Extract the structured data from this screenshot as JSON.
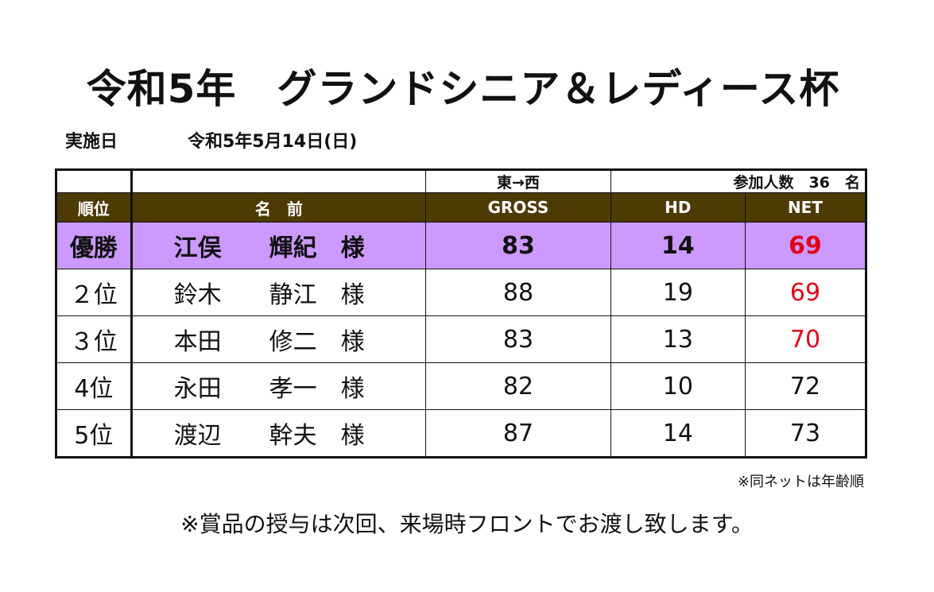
{
  "title": "令和5年　グランドシニア＆レディース杯",
  "event_date": {
    "label": "実施日",
    "value": "令和5年5月14日(日)"
  },
  "table": {
    "info_row": {
      "course": "東→西",
      "participants": "参加人数　36　名"
    },
    "headers": {
      "rank": "順位",
      "name": "名　前",
      "gross": "GROSS",
      "hd": "HD",
      "net": "NET"
    },
    "rows": [
      {
        "rank": "優勝",
        "name": "江俣　　輝紀　様",
        "gross": "83",
        "hd": "14",
        "net": "69",
        "highlight": true,
        "net_red": true
      },
      {
        "rank": "２位",
        "name": "鈴木　　静江　様",
        "gross": "88",
        "hd": "19",
        "net": "69",
        "highlight": false,
        "net_red": true
      },
      {
        "rank": "３位",
        "name": "本田　　修二　様",
        "gross": "83",
        "hd": "13",
        "net": "70",
        "highlight": false,
        "net_red": true
      },
      {
        "rank": "4位",
        "name": "永田　　孝一　様",
        "gross": "82",
        "hd": "10",
        "net": "72",
        "highlight": false,
        "net_red": false
      },
      {
        "rank": "5位",
        "name": "渡辺　　幹夫　様",
        "gross": "87",
        "hd": "14",
        "net": "73",
        "highlight": false,
        "net_red": false
      }
    ]
  },
  "notes": {
    "tie_rule": "※同ネットは年齢順",
    "prize": "※賞品の授与は次回、来場時フロントでお渡し致します。"
  },
  "colors": {
    "header_bg": "#4d3a05",
    "winner_bg": "#cc99ff",
    "net_highlight": "#e0001b"
  }
}
